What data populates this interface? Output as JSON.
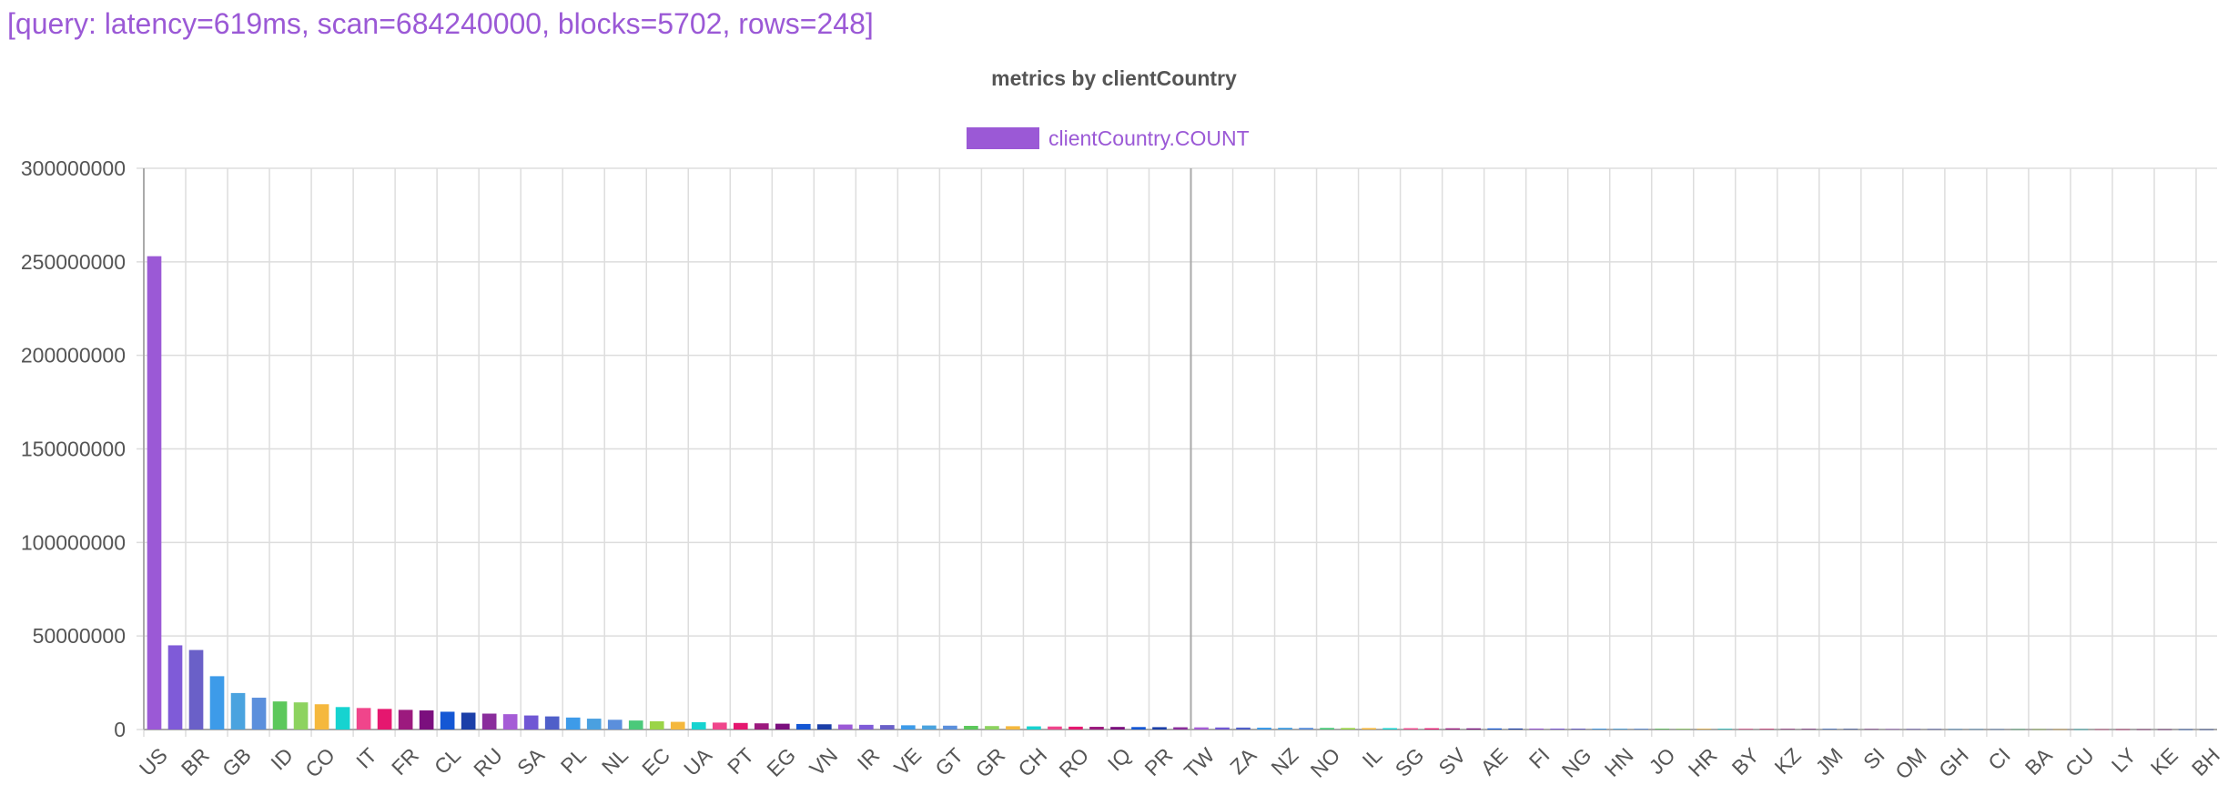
{
  "query_info": "[query: latency=619ms, scan=684240000, blocks=5702, rows=248]",
  "colors": {
    "query_text": "#9b59d6",
    "title": "#555555",
    "legend_text": "#9b59d6",
    "legend_swatch": "#9b59d6",
    "grid": "#dddddd",
    "axis_text": "#555555",
    "palette": [
      "#9b59d6",
      "#7f5bd8",
      "#6a60c8",
      "#3d9be9",
      "#4aa3df",
      "#5b8fdc",
      "#5cc85b",
      "#8dd35f",
      "#f5b83d",
      "#16d3d0",
      "#f0458b",
      "#e5176f",
      "#9c1a7e",
      "#7b0f7e",
      "#1457d4",
      "#1b3fa8",
      "#8a2d9c",
      "#a55cd6",
      "#7057d4",
      "#4f5fc9",
      "#3d9be9",
      "#4aa0e0",
      "#5b8fdc",
      "#4bc97a",
      "#9bd448",
      "#f5b83d",
      "#16d3d0",
      "#f0458b",
      "#e5176f",
      "#9c1a7e",
      "#7b0f7e",
      "#1457d4",
      "#1b3fa8"
    ]
  },
  "chart_data": {
    "type": "bar",
    "title": "metrics by clientCountry",
    "series": [
      {
        "name": "clientCountry.COUNT",
        "values": [
          253000000,
          45000000,
          42500000,
          28500000,
          19500000,
          17000000,
          15000000,
          14500000,
          13500000,
          12000000,
          11500000,
          11000000,
          10500000,
          10200000,
          9500000,
          9000000,
          8500000,
          8200000,
          7500000,
          7000000,
          6400000,
          5800000,
          5200000,
          4800000,
          4400000,
          4100000,
          3900000,
          3700000,
          3500000,
          3300000,
          3100000,
          2950000,
          2800000,
          2650000,
          2500000,
          2380000,
          2260000,
          2150000,
          2050000,
          1950000,
          1850000,
          1760000,
          1680000,
          1600000,
          1520000,
          1450000,
          1380000,
          1320000,
          1260000,
          1200000,
          1140000,
          1090000,
          1040000,
          990000,
          940000,
          900000,
          860000,
          820000,
          780000,
          740000,
          700000,
          670000,
          640000,
          610000,
          580000,
          550000,
          520000,
          495000,
          470000,
          445000,
          420000,
          400000,
          380000,
          360000,
          340000,
          322000,
          305000,
          288000,
          272000,
          257000,
          243000,
          230000,
          217000,
          205000,
          194000,
          183000,
          173000,
          163000,
          154000,
          145000,
          137000,
          129000,
          121000,
          114000,
          107000,
          100000,
          94000,
          88000,
          82000
        ]
      }
    ],
    "categories": [
      "US",
      "",
      "BR",
      "",
      "GB",
      "",
      "ID",
      "",
      "CO",
      "",
      "IT",
      "",
      "FR",
      "",
      "CL",
      "",
      "RU",
      "",
      "SA",
      "",
      "PL",
      "",
      "NL",
      "",
      "EC",
      "",
      "UA",
      "",
      "PT",
      "",
      "EG",
      "",
      "VN",
      "",
      "IR",
      "",
      "VE",
      "",
      "GT",
      "",
      "GR",
      "",
      "CH",
      "",
      "RO",
      "",
      "IQ",
      "",
      "PR",
      "",
      "TW",
      "",
      "ZA",
      "",
      "NZ",
      "",
      "NO",
      "",
      "IL",
      "",
      "SG",
      "",
      "SV",
      "",
      "AE",
      "",
      "FI",
      "",
      "NG",
      "",
      "HN",
      "",
      "JO",
      "",
      "HR",
      "",
      "BY",
      "",
      "KZ",
      "",
      "JM",
      "",
      "SI",
      "",
      "OM",
      "",
      "GH",
      "",
      "CI",
      "",
      "BA",
      "",
      "CU",
      "",
      "LY",
      "",
      "KE",
      "",
      "BH"
    ],
    "ylim": [
      0,
      300000000
    ],
    "yticks": [
      "300000000",
      "250000000",
      "200000000",
      "150000000",
      "100000000",
      "50000000",
      "0"
    ],
    "grid": true,
    "legend": "top-center"
  }
}
